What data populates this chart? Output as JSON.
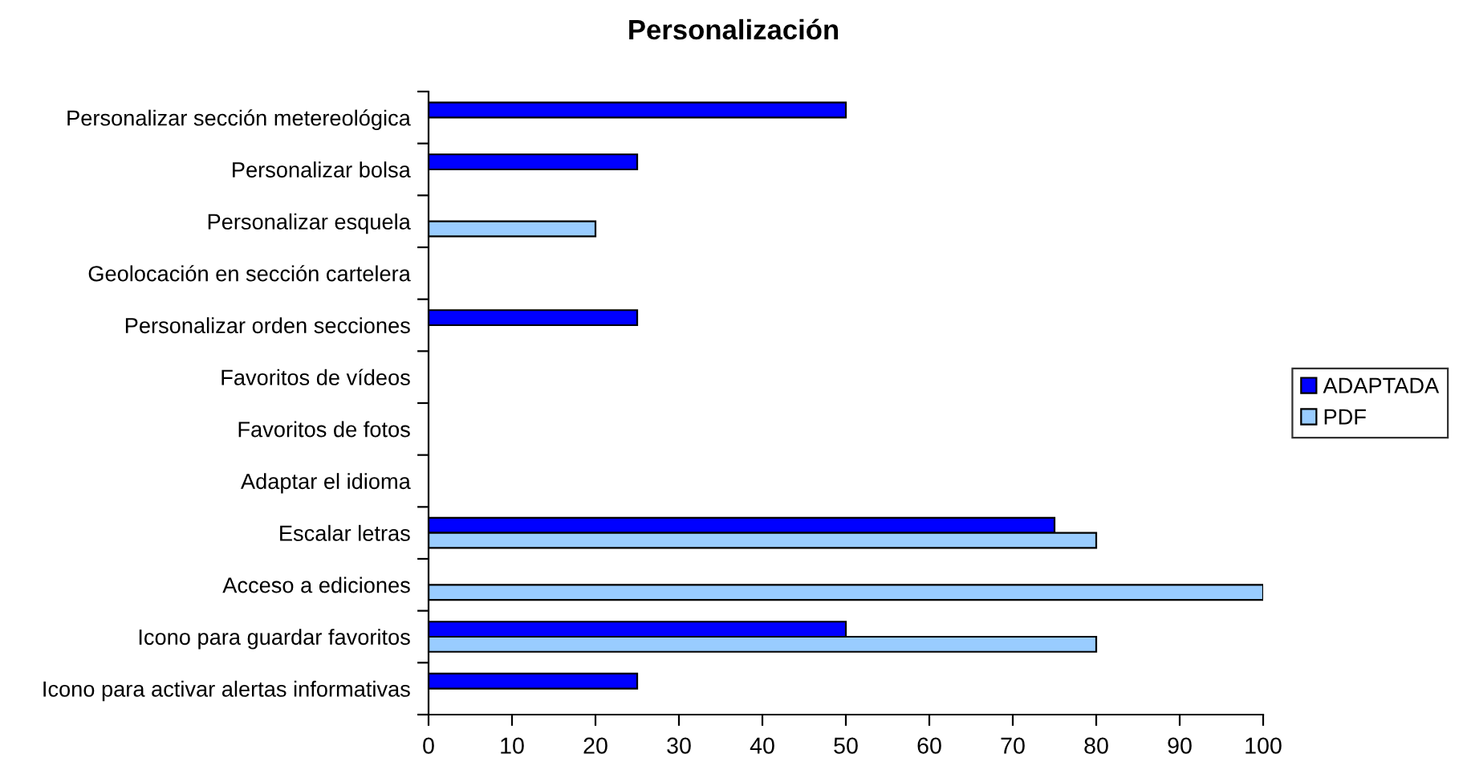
{
  "chart_data": {
    "type": "bar",
    "orientation": "horizontal",
    "title": "Personalización",
    "categories": [
      "Personalizar sección metereológica",
      "Personalizar bolsa",
      "Personalizar esquela",
      "Geolocación en sección cartelera",
      "Personalizar orden secciones",
      "Favoritos de vídeos",
      "Favoritos de fotos",
      "Adaptar el idioma",
      "Escalar letras",
      "Acceso a ediciones",
      "Icono para guardar favoritos",
      "Icono para activar alertas informativas"
    ],
    "series": [
      {
        "name": "ADAPTADA",
        "color": "#0000ff",
        "values": [
          50,
          25,
          null,
          null,
          25,
          null,
          null,
          null,
          75,
          null,
          50,
          25
        ]
      },
      {
        "name": "PDF",
        "color": "#99ccff",
        "values": [
          null,
          null,
          20,
          null,
          null,
          null,
          null,
          null,
          80,
          100,
          80,
          null
        ]
      }
    ],
    "xlim": [
      0,
      100
    ],
    "xticks": [
      0,
      10,
      20,
      30,
      40,
      50,
      60,
      70,
      80,
      90,
      100
    ],
    "grid": false,
    "legend": "right"
  }
}
